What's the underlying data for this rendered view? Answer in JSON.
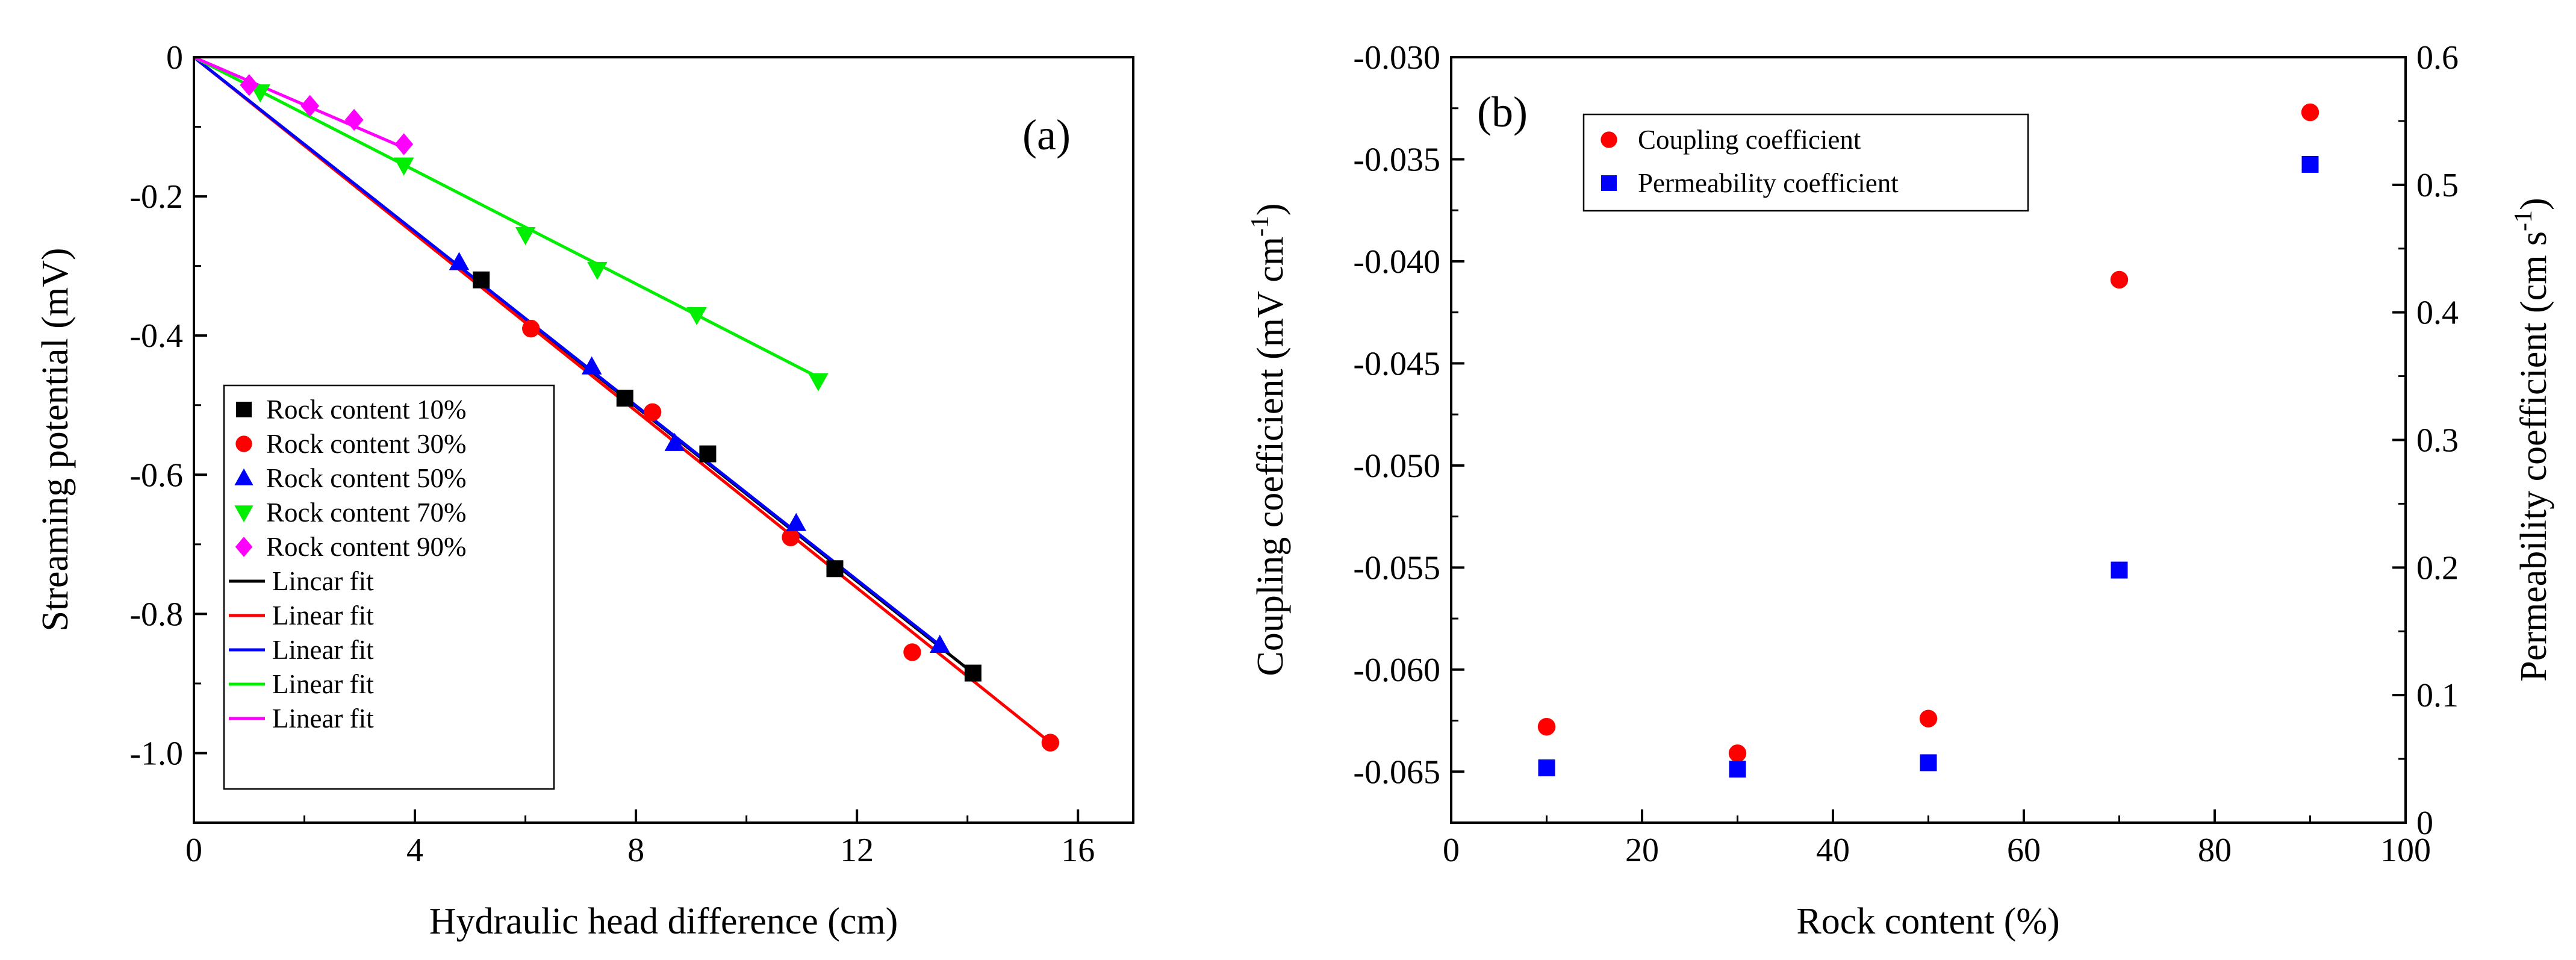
{
  "chart_data": [
    {
      "type": "scatter",
      "panel_label": "(a)",
      "xlabel": "Hydraulic head difference (cm)",
      "ylabel": "Streaming potential (mV)",
      "xlim": [
        0,
        17
      ],
      "ylim": [
        -1.1,
        0
      ],
      "x_ticks": [
        0,
        4,
        8,
        12,
        16
      ],
      "x_tick_labels": [
        "0",
        "4",
        "8",
        "12",
        "16"
      ],
      "y_ticks": [
        0,
        -0.2,
        -0.4,
        -0.6,
        -0.8,
        -1.0
      ],
      "y_tick_labels": [
        "0",
        "-0.2",
        "-0.4",
        "-0.6",
        "-0.8",
        "-1.0"
      ],
      "legend_position": "bottom-left",
      "series": [
        {
          "name": "Rock content 10%",
          "color": "#000000",
          "marker": "square",
          "points": [
            [
              0,
              0
            ],
            [
              5.2,
              -0.32
            ],
            [
              7.8,
              -0.49
            ],
            [
              9.3,
              -0.57
            ],
            [
              11.6,
              -0.735
            ],
            [
              14.1,
              -0.885
            ]
          ]
        },
        {
          "name": "Rock content 30%",
          "color": "#ff0000",
          "marker": "circle",
          "points": [
            [
              0,
              0
            ],
            [
              6.1,
              -0.39
            ],
            [
              8.3,
              -0.51
            ],
            [
              10.8,
              -0.69
            ],
            [
              13.0,
              -0.855
            ],
            [
              15.5,
              -0.985
            ]
          ]
        },
        {
          "name": "Rock content 50%",
          "color": "#0000ff",
          "marker": "triangle-up",
          "points": [
            [
              0,
              0
            ],
            [
              4.8,
              -0.295
            ],
            [
              7.2,
              -0.445
            ],
            [
              8.7,
              -0.555
            ],
            [
              10.9,
              -0.67
            ],
            [
              13.5,
              -0.845
            ]
          ]
        },
        {
          "name": "Rock content 70%",
          "color": "#00ee00",
          "marker": "triangle-down",
          "points": [
            [
              0,
              0
            ],
            [
              1.2,
              -0.05
            ],
            [
              3.8,
              -0.155
            ],
            [
              6.0,
              -0.255
            ],
            [
              7.3,
              -0.305
            ],
            [
              9.1,
              -0.37
            ],
            [
              11.3,
              -0.465
            ]
          ]
        },
        {
          "name": "Rock content 90%",
          "color": "#ff00ff",
          "marker": "diamond",
          "points": [
            [
              0,
              0
            ],
            [
              1.0,
              -0.04
            ],
            [
              2.1,
              -0.07
            ],
            [
              2.9,
              -0.09
            ],
            [
              3.8,
              -0.125
            ]
          ]
        }
      ],
      "fits": [
        {
          "name": "Lincar fit",
          "color": "#000000",
          "from": [
            0,
            0
          ],
          "to": [
            14.1,
            -0.885
          ]
        },
        {
          "name": "Linear fit",
          "color": "#ff0000",
          "from": [
            0,
            0
          ],
          "to": [
            15.5,
            -0.985
          ]
        },
        {
          "name": "Linear fit",
          "color": "#0000ff",
          "from": [
            0,
            0
          ],
          "to": [
            13.5,
            -0.845
          ]
        },
        {
          "name": "Linear fit",
          "color": "#00ee00",
          "from": [
            0,
            0
          ],
          "to": [
            11.3,
            -0.46
          ]
        },
        {
          "name": "Linear fit",
          "color": "#ff00ff",
          "from": [
            0,
            0
          ],
          "to": [
            3.8,
            -0.13
          ]
        }
      ]
    },
    {
      "type": "scatter",
      "panel_label": "(b)",
      "xlabel": "Rock content (%)",
      "ylabel_left": "Coupling coefficient (mV cm",
      "ylabel_left_sup": "-1",
      "ylabel_left_end": ")",
      "ylabel_right": "Permeability coefficient (cm s",
      "ylabel_right_sup": "-1",
      "ylabel_right_end": ")",
      "xlim": [
        0,
        100
      ],
      "ylim_left": [
        -0.0675,
        -0.03
      ],
      "ylim_right": [
        0,
        0.6
      ],
      "x_ticks": [
        0,
        20,
        40,
        60,
        80,
        100
      ],
      "x_tick_labels": [
        "0",
        "20",
        "40",
        "60",
        "80",
        "100"
      ],
      "y_left_ticks": [
        -0.03,
        -0.035,
        -0.04,
        -0.045,
        -0.05,
        -0.055,
        -0.06,
        -0.065
      ],
      "y_left_tick_labels": [
        "-0.030",
        "-0.035",
        "-0.040",
        "-0.045",
        "-0.050",
        "-0.055",
        "-0.060",
        "-0.065"
      ],
      "y_right_ticks": [
        0,
        0.1,
        0.2,
        0.3,
        0.4,
        0.5,
        0.6
      ],
      "y_right_tick_labels": [
        "0",
        "0.1",
        "0.2",
        "0.3",
        "0.4",
        "0.5",
        "0.6"
      ],
      "legend_position": "top-left",
      "series": [
        {
          "name": "Coupling coefficient",
          "color": "#ff0000",
          "marker": "circle",
          "axis": "left",
          "x": [
            10,
            30,
            50,
            70,
            90
          ],
          "y": [
            -0.0628,
            -0.0641,
            -0.0624,
            -0.0409,
            -0.0327
          ]
        },
        {
          "name": "Permeability coefficient",
          "color": "#0000ff",
          "marker": "square",
          "axis": "right",
          "x": [
            10,
            30,
            50,
            70,
            90
          ],
          "y": [
            0.043,
            0.042,
            0.047,
            0.198,
            0.516
          ]
        }
      ]
    }
  ]
}
